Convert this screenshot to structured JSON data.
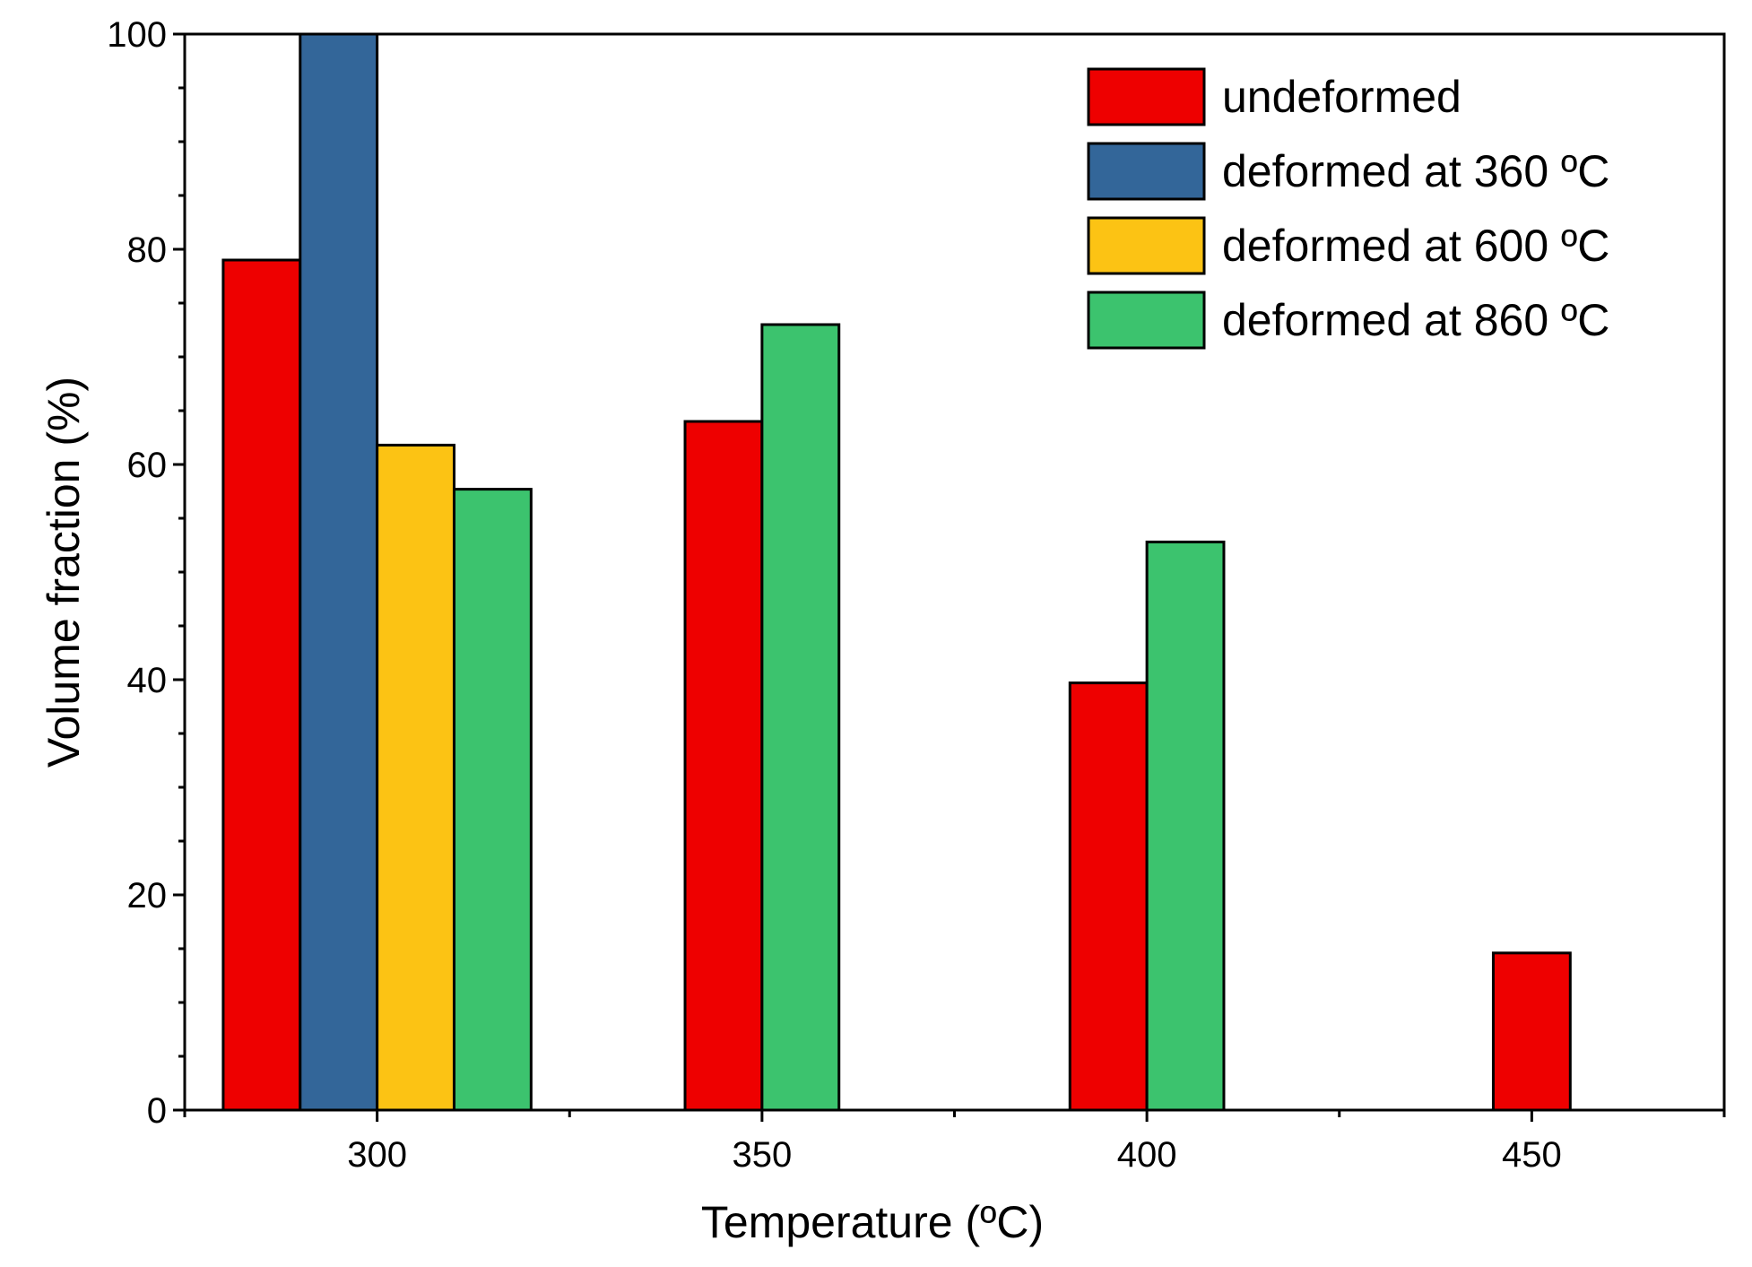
{
  "chart_data": {
    "type": "bar",
    "xlabel": "Temperature (ºC)",
    "ylabel": "Volume fraction (%)",
    "xlim": [
      275,
      475
    ],
    "ylim": [
      0,
      100
    ],
    "x_ticks": [
      300,
      350,
      400,
      450
    ],
    "y_ticks": [
      0,
      20,
      40,
      60,
      80,
      100
    ],
    "bar_width": 10,
    "legend_position": "top-right",
    "series": [
      {
        "name": "undeformed",
        "color": "#ee0000",
        "points": [
          {
            "x": 285,
            "y": 79
          },
          {
            "x": 345,
            "y": 64
          },
          {
            "x": 395,
            "y": 39.7
          },
          {
            "x": 450,
            "y": 14.6
          }
        ]
      },
      {
        "name": "deformed at 360 ºC",
        "color": "#336699",
        "points": [
          {
            "x": 295,
            "y": 100
          }
        ]
      },
      {
        "name": "deformed at 600 ºC",
        "color": "#fcc314",
        "points": [
          {
            "x": 305,
            "y": 61.8
          }
        ]
      },
      {
        "name": "deformed at 860 ºC",
        "color": "#3cc36e",
        "points": [
          {
            "x": 315,
            "y": 57.7
          },
          {
            "x": 355,
            "y": 73
          },
          {
            "x": 405,
            "y": 52.8
          }
        ]
      }
    ]
  }
}
